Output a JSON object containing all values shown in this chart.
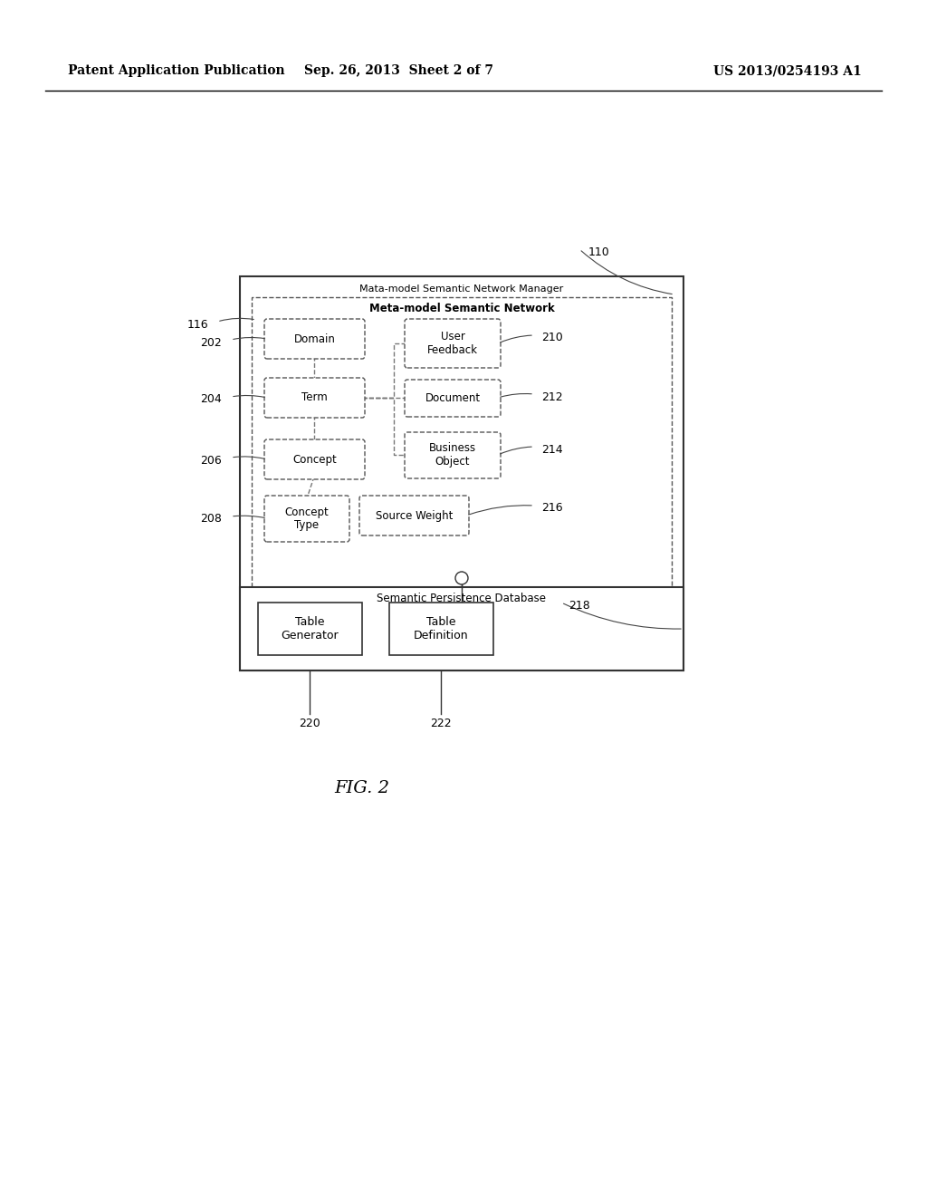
{
  "header_left": "Patent Application Publication",
  "header_center": "Sep. 26, 2013  Sheet 2 of 7",
  "header_right": "US 2013/0254193 A1",
  "fig_label": "FIG. 2",
  "bg_color": "#ffffff",
  "outer_box_label": "Mata-model Semantic Network Manager",
  "inner_box_label": "Meta-model Semantic Network",
  "db_box_label": "Semantic Persistence Database"
}
